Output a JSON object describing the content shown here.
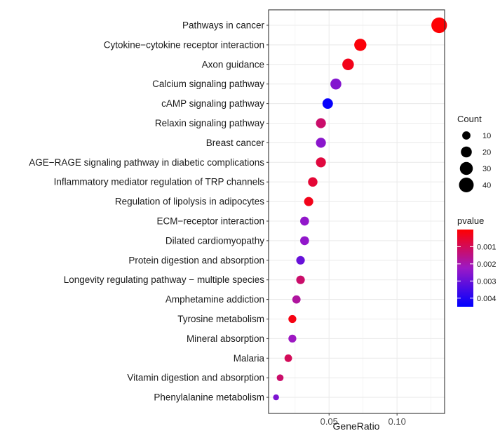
{
  "chart_data": {
    "type": "scatter",
    "xlabel": "GeneRatio",
    "ylabel": "",
    "xlim": [
      0.0055,
      0.135
    ],
    "x_ticks": [
      {
        "value": 0.05,
        "label": "0.05"
      },
      {
        "value": 0.1,
        "label": "0.10"
      }
    ],
    "grid": true,
    "categories": [
      "Pathways in cancer",
      "Cytokine−cytokine receptor interaction",
      "Axon guidance",
      "Calcium signaling pathway",
      "cAMP signaling pathway",
      "Relaxin signaling pathway",
      "Breast cancer",
      "AGE−RAGE signaling pathway in diabetic complications",
      "Inflammatory mediator regulation of TRP channels",
      "Regulation of lipolysis in adipocytes",
      "ECM−receptor interaction",
      "Dilated cardiomyopathy",
      "Protein digestion and absorption",
      "Longevity regulating pathway − multiple species",
      "Amphetamine addiction",
      "Tyrosine metabolism",
      "Mineral absorption",
      "Malaria",
      "Vitamin digestion and absorption",
      "Phenylalanine metabolism"
    ],
    "points": [
      {
        "term": "Pathways in cancer",
        "gene_ratio": 0.131,
        "count": 46,
        "pvalue": 5e-05
      },
      {
        "term": "Cytokine−cytokine receptor interaction",
        "gene_ratio": 0.073,
        "count": 26,
        "pvalue": 0.0001
      },
      {
        "term": "Axon guidance",
        "gene_ratio": 0.064,
        "count": 23,
        "pvalue": 0.0003
      },
      {
        "term": "Calcium signaling pathway",
        "gene_ratio": 0.055,
        "count": 20,
        "pvalue": 0.0026
      },
      {
        "term": "cAMP signaling pathway",
        "gene_ratio": 0.049,
        "count": 18,
        "pvalue": 0.0044
      },
      {
        "term": "Relaxin signaling pathway",
        "gene_ratio": 0.044,
        "count": 16,
        "pvalue": 0.0012
      },
      {
        "term": "Breast cancer",
        "gene_ratio": 0.044,
        "count": 16,
        "pvalue": 0.0025
      },
      {
        "term": "AGE−RAGE signaling pathway in diabetic complications",
        "gene_ratio": 0.044,
        "count": 16,
        "pvalue": 0.0007
      },
      {
        "term": "Inflammatory mediator regulation of TRP channels",
        "gene_ratio": 0.038,
        "count": 14,
        "pvalue": 0.0006
      },
      {
        "term": "Regulation of lipolysis in adipocytes",
        "gene_ratio": 0.035,
        "count": 13,
        "pvalue": 0.0003
      },
      {
        "term": "ECM−receptor interaction",
        "gene_ratio": 0.032,
        "count": 12,
        "pvalue": 0.0024
      },
      {
        "term": "Dilated cardiomyopathy",
        "gene_ratio": 0.032,
        "count": 12,
        "pvalue": 0.0024
      },
      {
        "term": "Protein digestion and absorption",
        "gene_ratio": 0.029,
        "count": 11,
        "pvalue": 0.003
      },
      {
        "term": "Longevity regulating pathway − multiple species",
        "gene_ratio": 0.029,
        "count": 11,
        "pvalue": 0.0012
      },
      {
        "term": "Amphetamine addiction",
        "gene_ratio": 0.026,
        "count": 10,
        "pvalue": 0.0018
      },
      {
        "term": "Tyrosine metabolism",
        "gene_ratio": 0.023,
        "count": 9,
        "pvalue": 0.0002
      },
      {
        "term": "Mineral absorption",
        "gene_ratio": 0.023,
        "count": 9,
        "pvalue": 0.0022
      },
      {
        "term": "Malaria",
        "gene_ratio": 0.02,
        "count": 8,
        "pvalue": 0.001
      },
      {
        "term": "Vitamin digestion and absorption",
        "gene_ratio": 0.014,
        "count": 6,
        "pvalue": 0.0012
      },
      {
        "term": "Phenylalanine metabolism",
        "gene_ratio": 0.011,
        "count": 4,
        "pvalue": 0.0027
      }
    ],
    "size_legend": {
      "title": "Count",
      "entries": [
        {
          "label": "10",
          "value": 10
        },
        {
          "label": "20",
          "value": 20
        },
        {
          "label": "30",
          "value": 30
        },
        {
          "label": "40",
          "value": 40
        }
      ]
    },
    "color_legend": {
      "title": "pvalue",
      "range": [
        0.0,
        0.0045
      ],
      "ticks": [
        {
          "label": "0.001",
          "value": 0.001
        },
        {
          "label": "0.002",
          "value": 0.002
        },
        {
          "label": "0.003",
          "value": 0.003
        },
        {
          "label": "0.004",
          "value": 0.004
        }
      ],
      "low_color": "#ff0000",
      "mid_color": "#9b19c6",
      "high_color": "#0000ff"
    }
  },
  "colors": {
    "panel_border": "#333333",
    "grid": "#ebebeb",
    "text": "#1a1a1a"
  }
}
